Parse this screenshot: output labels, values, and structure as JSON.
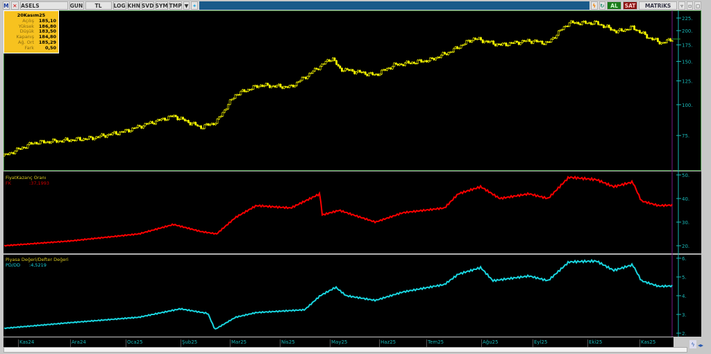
{
  "toolbar": {
    "logo": "M",
    "symbol": "ASELS",
    "buttons": [
      "GUN",
      "TL",
      "LOG",
      "KHN",
      "SVD",
      "SYM",
      "TMP"
    ],
    "buy": "AL",
    "sell": "SAT",
    "brand": "MATRiKS",
    "icons": [
      "menu-dropdown-icon",
      "twitter-icon",
      "lightning-icon",
      "refresh-icon"
    ]
  },
  "info_box": {
    "date": "20Kasım25",
    "rows": [
      {
        "label": "Açılış",
        "value": "185,10"
      },
      {
        "label": "Yüksek",
        "value": "186,80"
      },
      {
        "label": "Düşük",
        "value": "183,50"
      },
      {
        "label": "Kapanış",
        "value": "184,80"
      },
      {
        "label": "Ağ. Ort",
        "value": "185,29"
      },
      {
        "label": "Fark",
        "value": "0,50"
      }
    ]
  },
  "colors": {
    "price": "#ffff00",
    "pe": "#ff0000",
    "pb": "#19d6e0",
    "axis": "#19b8b8",
    "cursor": "#7a1a8a"
  },
  "panels": {
    "pe": {
      "title": "FiyatKazanç Oranı",
      "label": "FK",
      "value": ":37,1993"
    },
    "pb": {
      "title": "Piyasa Değeri/Defter Değeri",
      "label": "PD/DD",
      "value": ":4,5219"
    }
  },
  "chart_data": [
    {
      "type": "candlestick",
      "scale": "log",
      "yticks": [
        75,
        100,
        125,
        150,
        175,
        200,
        225
      ],
      "x": [
        "2024-10-23",
        "2024-11-10",
        "2024-12-13",
        "2025-01-03",
        "2025-02-01",
        "2025-02-17",
        "2025-02-26",
        "2025-03-07",
        "2025-03-21",
        "2025-04-09",
        "2025-04-19",
        "2025-05-03",
        "2025-05-07",
        "2025-05-28",
        "2025-06-09",
        "2025-06-30",
        "2025-07-12",
        "2025-07-25",
        "2025-08-10",
        "2025-08-27",
        "2025-09-08",
        "2025-09-20",
        "2025-10-06",
        "2025-10-18",
        "2025-10-27",
        "2025-11-06",
        "2025-11-14",
        "2025-11-20"
      ],
      "close": [
        62,
        70,
        73,
        78,
        90,
        81,
        85,
        110,
        120,
        118,
        132,
        155,
        140,
        132,
        145,
        152,
        165,
        186,
        175,
        182,
        178,
        215,
        215,
        198,
        206,
        188,
        178,
        185
      ]
    },
    {
      "type": "line",
      "name": "FK",
      "yticks": [
        20,
        30,
        40,
        50
      ],
      "x": [
        "2024-10-23",
        "2024-12-01",
        "2025-01-11",
        "2025-02-01",
        "2025-02-17",
        "2025-02-26",
        "2025-03-07",
        "2025-03-19",
        "2025-04-09",
        "2025-04-23",
        "2025-04-26",
        "2025-04-27",
        "2025-05-07",
        "2025-05-28",
        "2025-06-14",
        "2025-07-08",
        "2025-07-16",
        "2025-07-29",
        "2025-08-10",
        "2025-08-27",
        "2025-09-08",
        "2025-09-20",
        "2025-10-06",
        "2025-10-16",
        "2025-10-27",
        "2025-11-02",
        "2025-11-12",
        "2025-11-20"
      ],
      "values": [
        20,
        22,
        25,
        29,
        26,
        25,
        32,
        37,
        36,
        41,
        42,
        33,
        35,
        30,
        34,
        36,
        42,
        45,
        40,
        42,
        40,
        49,
        48,
        45,
        47,
        39,
        37,
        37.2
      ]
    },
    {
      "type": "line",
      "name": "PD/DD",
      "yticks": [
        2,
        3,
        4,
        5,
        6
      ],
      "x": [
        "2024-10-23",
        "2024-12-01",
        "2025-01-11",
        "2025-02-05",
        "2025-02-21",
        "2025-02-25",
        "2025-03-07",
        "2025-03-19",
        "2025-04-17",
        "2025-04-26",
        "2025-05-05",
        "2025-05-11",
        "2025-05-28",
        "2025-06-14",
        "2025-07-08",
        "2025-07-16",
        "2025-07-29",
        "2025-08-06",
        "2025-08-27",
        "2025-09-08",
        "2025-09-20",
        "2025-10-06",
        "2025-10-16",
        "2025-10-27",
        "2025-11-02",
        "2025-11-12",
        "2025-11-20"
      ],
      "values": [
        2.26,
        2.56,
        2.85,
        3.3,
        3.05,
        2.2,
        2.85,
        3.1,
        3.25,
        4.0,
        4.45,
        4.0,
        3.75,
        4.2,
        4.6,
        5.15,
        5.5,
        4.8,
        5.05,
        4.8,
        5.8,
        5.85,
        5.35,
        5.65,
        4.8,
        4.5,
        4.52
      ]
    }
  ],
  "xaxis": {
    "labels": [
      "Kas24",
      "Ara24",
      "Oca25",
      "Şub25",
      "Mar25",
      "Nis25",
      "May25",
      "Haz25",
      "Tem25",
      "Ağu25",
      "Eyl25",
      "Eki25",
      "Kas25"
    ]
  }
}
